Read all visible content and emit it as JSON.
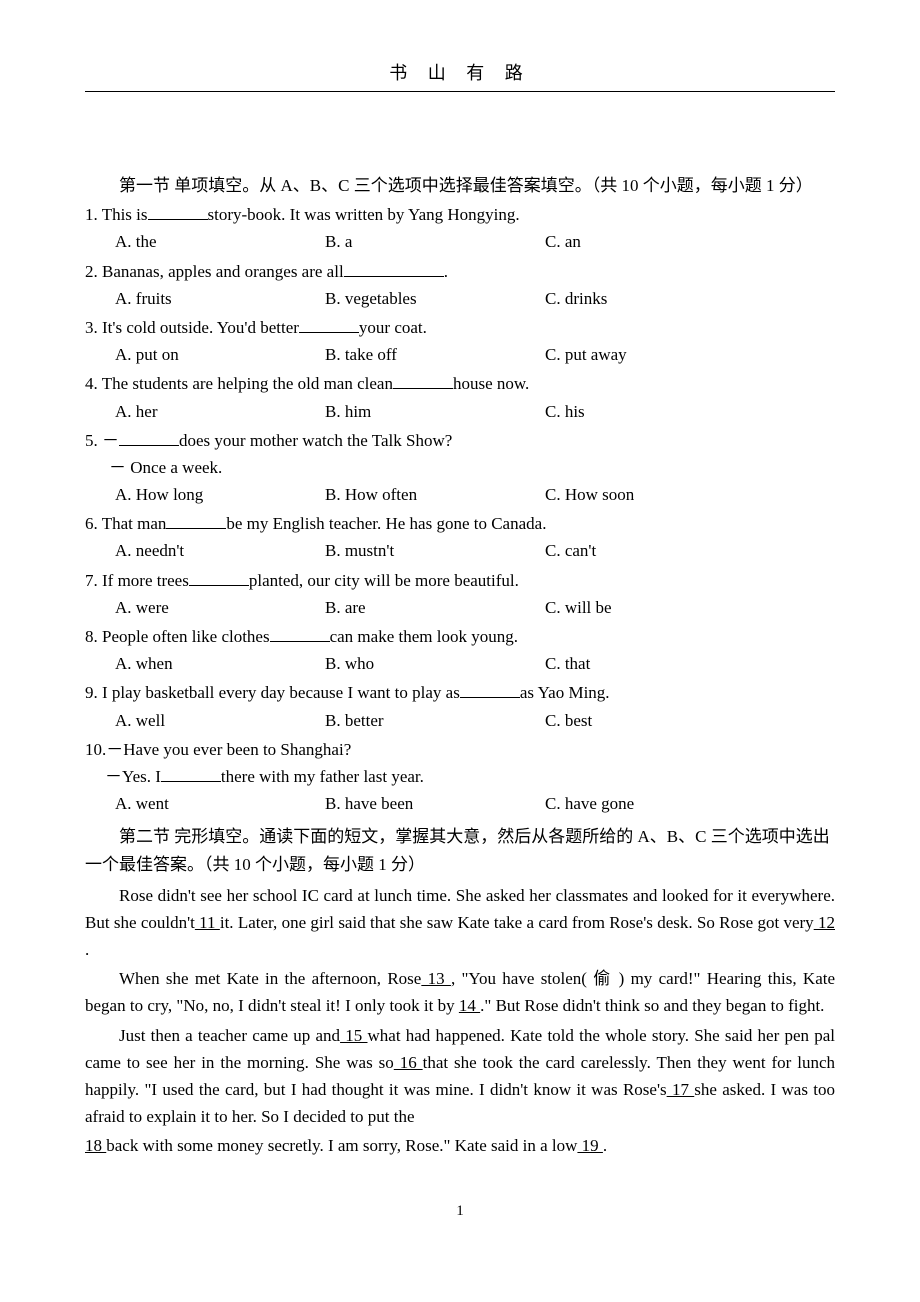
{
  "header": {
    "title": "书 山 有  路"
  },
  "section1": {
    "title": "第一节 单项填空。从 A、B、C 三个选项中选择最佳答案填空。（共 10 个小题，每小题 1 分）",
    "questions": [
      {
        "num": "1.",
        "text_before": "This is",
        "text_after": "story-book. It was written by Yang Hongying.",
        "blank_width": 60,
        "opts": {
          "a": "A. the",
          "b": "B. a",
          "c": "C. an"
        }
      },
      {
        "num": "2.",
        "text_before": "Bananas, apples and oranges are all",
        "text_after": ".",
        "blank_width": 100,
        "opts": {
          "a": "A. fruits",
          "b": "B. vegetables",
          "c": "C. drinks"
        }
      },
      {
        "num": "3.",
        "text_before": "It's cold outside. You'd better",
        "text_after": "your coat.",
        "blank_width": 60,
        "opts": {
          "a": "A. put on",
          "b": "B. take off",
          "c": "C. put away"
        }
      },
      {
        "num": "4.",
        "text_before": "The students are helping the old man clean",
        "text_after": "house now.",
        "blank_width": 60,
        "opts": {
          "a": "A. her",
          "b": "B. him",
          "c": "C. his"
        }
      },
      {
        "num": "5.",
        "text_before": "－",
        "text_after": "does your mother watch the Talk Show?",
        "blank_width": 60,
        "line2": "－ Once a week.",
        "opts": {
          "a": "A. How long",
          "b": "B. How often",
          "c": "C. How soon"
        }
      },
      {
        "num": "6.",
        "text_before": "That man",
        "text_after": "be my English teacher. He has gone to Canada.",
        "blank_width": 60,
        "opts": {
          "a": "A. needn't",
          "b": "B. mustn't",
          "c": "C. can't"
        }
      },
      {
        "num": "7.",
        "text_before": "If more trees",
        "text_after": "planted, our city will be more beautiful.",
        "blank_width": 60,
        "opts": {
          "a": "A. were",
          "b": "B. are",
          "c": "C. will be"
        }
      },
      {
        "num": "8.",
        "text_before": "People often like clothes",
        "text_after": "can make them look young.",
        "blank_width": 60,
        "opts": {
          "a": "A. when",
          "b": "B. who",
          "c": "C. that"
        }
      },
      {
        "num": "9.",
        "text_before": "I play basketball every day because I want to play as",
        "text_after": "as Yao Ming.",
        "blank_width": 60,
        "opts": {
          "a": "A. well",
          "b": "B. better",
          "c": "C. best"
        }
      },
      {
        "num": "10.",
        "text_before": "－Have you ever been to Shanghai?",
        "line2_pre": "－Yes. I",
        "line2_post": "there with my father last year.",
        "blank_width": 60,
        "opts": {
          "a": "A. went",
          "b": "B. have been",
          "c": "C. have gone"
        }
      }
    ]
  },
  "section2": {
    "title": "第二节 完形填空。通读下面的短文，掌握其大意，然后从各题所给的 A、B、C 三个选项中选出一个最佳答案。（共 10 个小题，每小题 1 分）",
    "p1a": "Rose didn't see her school IC card at lunch time. She asked her classmates and looked for it everywhere. But she couldn't",
    "p1_blank1": " 11 ",
    "p1b": " it. Later, one girl said that she  saw Kate take a card from Rose's desk. So Rose got very",
    "p1_blank2": " 12 ",
    "p1c": ".",
    "p2a": "When she met Kate in the afternoon, Rose",
    "p2_blank1": " 13 ",
    "p2b": ", \"You have stolen( 偷 ) my  card!\" Hearing this, Kate began to cry, \"No, no, I didn't steal it! I only took it by ",
    "p2_blank2": " 14 ",
    "p2c": ".\" But Rose didn't think so and they began to fight.",
    "p3a": "Just then a teacher came up and",
    "p3_blank1": " 15 ",
    "p3b": "what had happened. Kate told the  whole story. She said her pen pal came to see her in the morning. She was so",
    "p3_blank2": " 16 ",
    "p3c": " that she took the card carelessly. Then they went for lunch happily. \"I used the card,  but I had thought it was mine. I didn't know it was Rose's",
    "p3_blank3": " 17 ",
    "p3d": " she asked. I was  too afraid to explain it to her. So I decided to put the",
    "p4_blank1": "   18 ",
    "p4a": "back with some money secretly. I am sorry, Rose.\" Kate said in a low",
    "p4_blank2": " 19 ",
    "p4b": "."
  },
  "footer": {
    "page": "1"
  }
}
